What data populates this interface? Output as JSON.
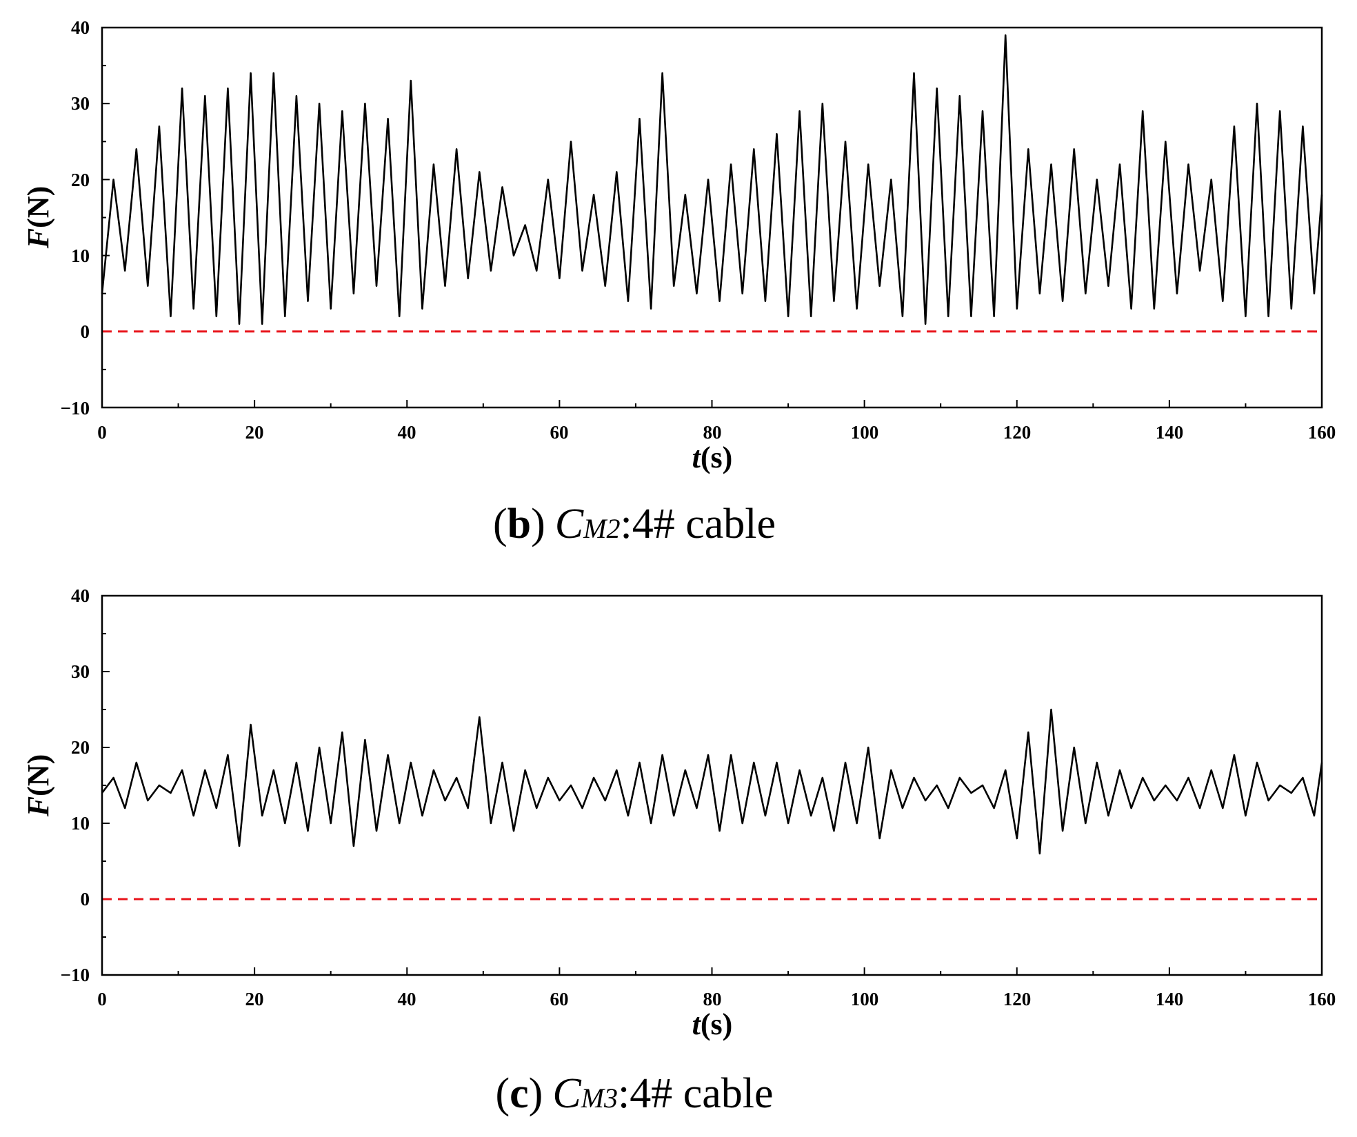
{
  "chart_data": [
    {
      "type": "line",
      "panel_label": "b",
      "caption": {
        "paren_open": "(",
        "letter": "b",
        "paren_close": ")",
        "symbol": "C",
        "subscript": "M2",
        "rest": ":4# cable"
      },
      "xlabel": {
        "symbol": "t",
        "unit": "(s)"
      },
      "ylabel": {
        "symbol": "F",
        "unit": "(N)"
      },
      "xlim": [
        0,
        160
      ],
      "ylim": [
        -10,
        40
      ],
      "x_ticks": [
        "0",
        "20",
        "40",
        "60",
        "80",
        "100",
        "120",
        "140",
        "160"
      ],
      "y_ticks": [
        "−10",
        "0",
        "10",
        "20",
        "30",
        "40"
      ],
      "grid": false,
      "reference_line": {
        "y": 0,
        "color": "#e8141b",
        "style": "dashed"
      },
      "line_color": "#000000",
      "series": [
        {
          "x": [
            0,
            1.5,
            3,
            4.5,
            6,
            7.5,
            9,
            10.5,
            12,
            13.5,
            15,
            16.5,
            18,
            19.5,
            21,
            22.5,
            24,
            25.5,
            27,
            28.5,
            30,
            31.5,
            33,
            34.5,
            36,
            37.5,
            39,
            40.5,
            42,
            43.5,
            45,
            46.5,
            48,
            49.5,
            51,
            52.5,
            54,
            55.5,
            57,
            58.5,
            60,
            61.5,
            63,
            64.5,
            66,
            67.5,
            69,
            70.5,
            72,
            73.5,
            75,
            76.5,
            78,
            79.5,
            81,
            82.5,
            84,
            85.5,
            87,
            88.5,
            90,
            91.5,
            93,
            94.5,
            96,
            97.5,
            99,
            100.5,
            102,
            103.5,
            105,
            106.5,
            108,
            109.5,
            111,
            112.5,
            114,
            115.5,
            117,
            118.5,
            120,
            121.5,
            123,
            124.5,
            126,
            127.5,
            129,
            130.5,
            132,
            133.5,
            135,
            136.5,
            138,
            139.5,
            141,
            142.5,
            144,
            145.5,
            147,
            148.5,
            150,
            151.5,
            153,
            154.5,
            156,
            157.5,
            159,
            160
          ],
          "y": [
            5,
            20,
            8,
            24,
            6,
            27,
            2,
            32,
            3,
            31,
            2,
            32,
            1,
            34,
            1,
            34,
            2,
            31,
            4,
            30,
            3,
            29,
            5,
            30,
            6,
            28,
            2,
            33,
            3,
            22,
            6,
            24,
            7,
            21,
            8,
            19,
            10,
            14,
            8,
            20,
            7,
            25,
            8,
            18,
            6,
            21,
            4,
            28,
            3,
            34,
            6,
            18,
            5,
            20,
            4,
            22,
            5,
            24,
            4,
            26,
            2,
            29,
            2,
            30,
            4,
            25,
            3,
            22,
            6,
            20,
            2,
            34,
            1,
            32,
            2,
            31,
            2,
            29,
            2,
            39,
            3,
            24,
            5,
            22,
            4,
            24,
            5,
            20,
            6,
            22,
            3,
            29,
            3,
            25,
            5,
            22,
            8,
            20,
            4,
            27,
            2,
            30,
            2,
            29,
            3,
            27,
            5,
            18
          ]
        }
      ]
    },
    {
      "type": "line",
      "panel_label": "c",
      "caption": {
        "paren_open": "(",
        "letter": "c",
        "paren_close": ")",
        "symbol": "C",
        "subscript": "M3",
        "rest": ":4# cable"
      },
      "xlabel": {
        "symbol": "t",
        "unit": "(s)"
      },
      "ylabel": {
        "symbol": "F",
        "unit": "(N)"
      },
      "xlim": [
        0,
        160
      ],
      "ylim": [
        -10,
        40
      ],
      "x_ticks": [
        "0",
        "20",
        "40",
        "60",
        "80",
        "100",
        "120",
        "140",
        "160"
      ],
      "y_ticks": [
        "−10",
        "0",
        "10",
        "20",
        "30",
        "40"
      ],
      "grid": false,
      "reference_line": {
        "y": 0,
        "color": "#e8141b",
        "style": "dashed"
      },
      "line_color": "#000000",
      "series": [
        {
          "x": [
            0,
            1.5,
            3,
            4.5,
            6,
            7.5,
            9,
            10.5,
            12,
            13.5,
            15,
            16.5,
            18,
            19.5,
            21,
            22.5,
            24,
            25.5,
            27,
            28.5,
            30,
            31.5,
            33,
            34.5,
            36,
            37.5,
            39,
            40.5,
            42,
            43.5,
            45,
            46.5,
            48,
            49.5,
            51,
            52.5,
            54,
            55.5,
            57,
            58.5,
            60,
            61.5,
            63,
            64.5,
            66,
            67.5,
            69,
            70.5,
            72,
            73.5,
            75,
            76.5,
            78,
            79.5,
            81,
            82.5,
            84,
            85.5,
            87,
            88.5,
            90,
            91.5,
            93,
            94.5,
            96,
            97.5,
            99,
            100.5,
            102,
            103.5,
            105,
            106.5,
            108,
            109.5,
            111,
            112.5,
            114,
            115.5,
            117,
            118.5,
            120,
            121.5,
            123,
            124.5,
            126,
            127.5,
            129,
            130.5,
            132,
            133.5,
            135,
            136.5,
            138,
            139.5,
            141,
            142.5,
            144,
            145.5,
            147,
            148.5,
            150,
            151.5,
            153,
            154.5,
            156,
            157.5,
            159,
            160
          ],
          "y": [
            14,
            16,
            12,
            18,
            13,
            15,
            14,
            17,
            11,
            17,
            12,
            19,
            7,
            23,
            11,
            17,
            10,
            18,
            9,
            20,
            10,
            22,
            7,
            21,
            9,
            19,
            10,
            18,
            11,
            17,
            13,
            16,
            12,
            24,
            10,
            18,
            9,
            17,
            12,
            16,
            13,
            15,
            12,
            16,
            13,
            17,
            11,
            18,
            10,
            19,
            11,
            17,
            12,
            19,
            9,
            19,
            10,
            18,
            11,
            18,
            10,
            17,
            11,
            16,
            9,
            18,
            10,
            20,
            8,
            17,
            12,
            16,
            13,
            15,
            12,
            16,
            14,
            15,
            12,
            17,
            8,
            22,
            6,
            25,
            9,
            20,
            10,
            18,
            11,
            17,
            12,
            16,
            13,
            15,
            13,
            16,
            12,
            17,
            12,
            19,
            11,
            18,
            13,
            15,
            14,
            16,
            11,
            18
          ]
        }
      ]
    }
  ]
}
